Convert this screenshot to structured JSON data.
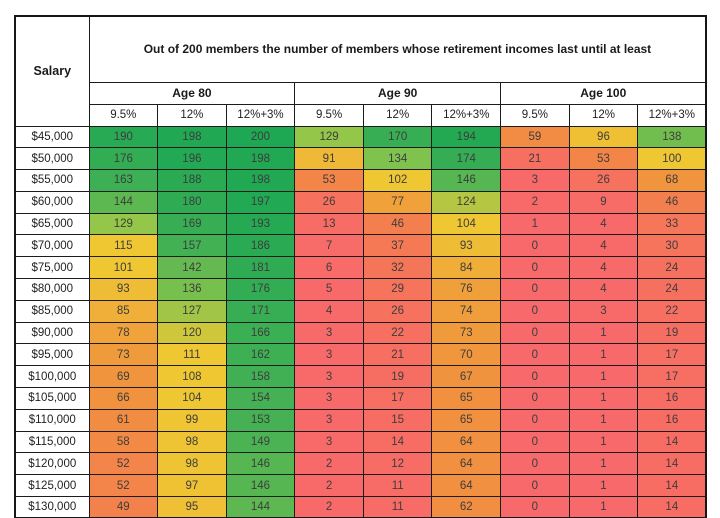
{
  "chart_data": {
    "type": "heatmap",
    "title": "Out of 200 members the number of members whose retirement incomes last until at least",
    "row_header_label": "Salary",
    "age_groups": [
      "Age 80",
      "Age 90",
      "Age 100"
    ],
    "contribution_rates": [
      "9.5%",
      "12%",
      "12%+3%"
    ],
    "columns": [
      "Age 80 9.5%",
      "Age 80 12%",
      "Age 80 12%+3%",
      "Age 90 9.5%",
      "Age 90 12%",
      "Age 90 12%+3%",
      "Age 100 9.5%",
      "Age 100 12%",
      "Age 100 12%+3%"
    ],
    "salaries": [
      "$45,000",
      "$50,000",
      "$55,000",
      "$60,000",
      "$65,000",
      "$70,000",
      "$75,000",
      "$80,000",
      "$85,000",
      "$90,000",
      "$95,000",
      "$100,000",
      "$105,000",
      "$110,000",
      "$115,000",
      "$120,000",
      "$125,000",
      "$130,000"
    ],
    "rows": [
      [
        190,
        198,
        200,
        129,
        170,
        194,
        59,
        96,
        138
      ],
      [
        176,
        196,
        198,
        91,
        134,
        174,
        21,
        53,
        100
      ],
      [
        163,
        188,
        198,
        53,
        102,
        146,
        3,
        26,
        68
      ],
      [
        144,
        180,
        197,
        26,
        77,
        124,
        2,
        9,
        46
      ],
      [
        129,
        169,
        193,
        13,
        46,
        104,
        1,
        4,
        33
      ],
      [
        115,
        157,
        186,
        7,
        37,
        93,
        0,
        4,
        30
      ],
      [
        101,
        142,
        181,
        6,
        32,
        84,
        0,
        4,
        24
      ],
      [
        93,
        136,
        176,
        5,
        29,
        76,
        0,
        4,
        24
      ],
      [
        85,
        127,
        171,
        4,
        26,
        74,
        0,
        3,
        22
      ],
      [
        78,
        120,
        166,
        3,
        22,
        73,
        0,
        1,
        19
      ],
      [
        73,
        111,
        162,
        3,
        21,
        70,
        0,
        1,
        17
      ],
      [
        69,
        108,
        158,
        3,
        19,
        67,
        0,
        1,
        17
      ],
      [
        66,
        104,
        154,
        3,
        17,
        65,
        0,
        1,
        16
      ],
      [
        61,
        99,
        153,
        3,
        15,
        65,
        0,
        1,
        16
      ],
      [
        58,
        98,
        149,
        3,
        14,
        64,
        0,
        1,
        14
      ],
      [
        52,
        98,
        146,
        2,
        12,
        64,
        0,
        1,
        14
      ],
      [
        52,
        97,
        146,
        2,
        11,
        64,
        0,
        1,
        14
      ],
      [
        49,
        95,
        144,
        2,
        11,
        62,
        0,
        1,
        14
      ]
    ],
    "value_range": [
      0,
      200
    ],
    "grid": true,
    "color_scale": {
      "description": "red-orange-gold-green conditional formatting by value",
      "stops": [
        {
          "value": 0,
          "color": "#F8696B"
        },
        {
          "value": 25,
          "color": "#F6705F"
        },
        {
          "value": 50,
          "color": "#F3824B"
        },
        {
          "value": 70,
          "color": "#F0963C"
        },
        {
          "value": 100,
          "color": "#EFC733"
        },
        {
          "value": 115,
          "color": "#EFC733"
        },
        {
          "value": 130,
          "color": "#8DC64C"
        },
        {
          "value": 150,
          "color": "#48B254"
        },
        {
          "value": 200,
          "color": "#1FA853"
        }
      ]
    },
    "style": {
      "border_color": "#1c1c1c",
      "header_background": "#ffffff",
      "data_text_color": "#3d3d3d"
    }
  }
}
